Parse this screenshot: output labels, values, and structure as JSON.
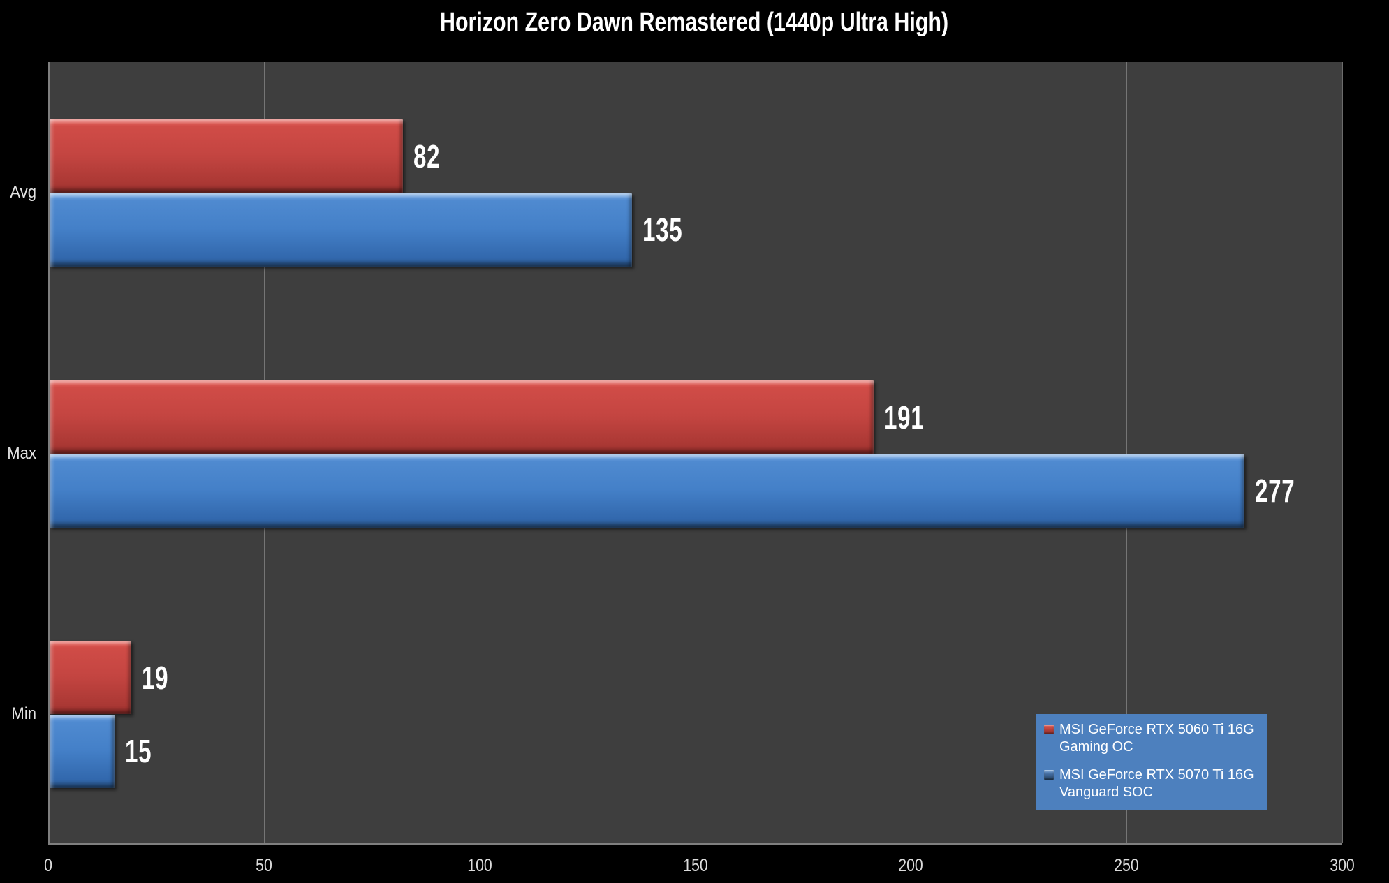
{
  "title": "Horizon Zero Dawn Remastered (1440p Ultra High)",
  "colors": {
    "background": "#000000",
    "plot_background": "#3E3E3E",
    "gridline": "#7F7F7F",
    "title_text": "#FFFFFF",
    "tick_text": "#DCDCDC",
    "value_label_text": "#FFFFFF",
    "series_red": "#C0504D",
    "series_blue": "#4F81BD",
    "legend_background": "#4D80BE",
    "legend_text": "#FFFFFF"
  },
  "chart_data": {
    "type": "bar",
    "orientation": "horizontal",
    "title": "Horizon Zero Dawn Remastered (1440p Ultra High)",
    "categories": [
      "Avg",
      "Max",
      "Min"
    ],
    "series": [
      {
        "name": "MSI GeForce RTX 5060 Ti 16G Gaming OC",
        "color": "#C0504D",
        "values": [
          82,
          191,
          19
        ]
      },
      {
        "name": "MSI GeForce RTX 5070 Ti 16G Vanguard SOC",
        "color": "#4F81BD",
        "values": [
          135,
          277,
          15
        ]
      }
    ],
    "xlabel": "",
    "ylabel": "",
    "xlim": [
      0,
      300
    ],
    "x_ticks": [
      0,
      50,
      100,
      150,
      200,
      250,
      300
    ],
    "grid": true,
    "value_labels": true,
    "legend_position": "bottom-right"
  }
}
